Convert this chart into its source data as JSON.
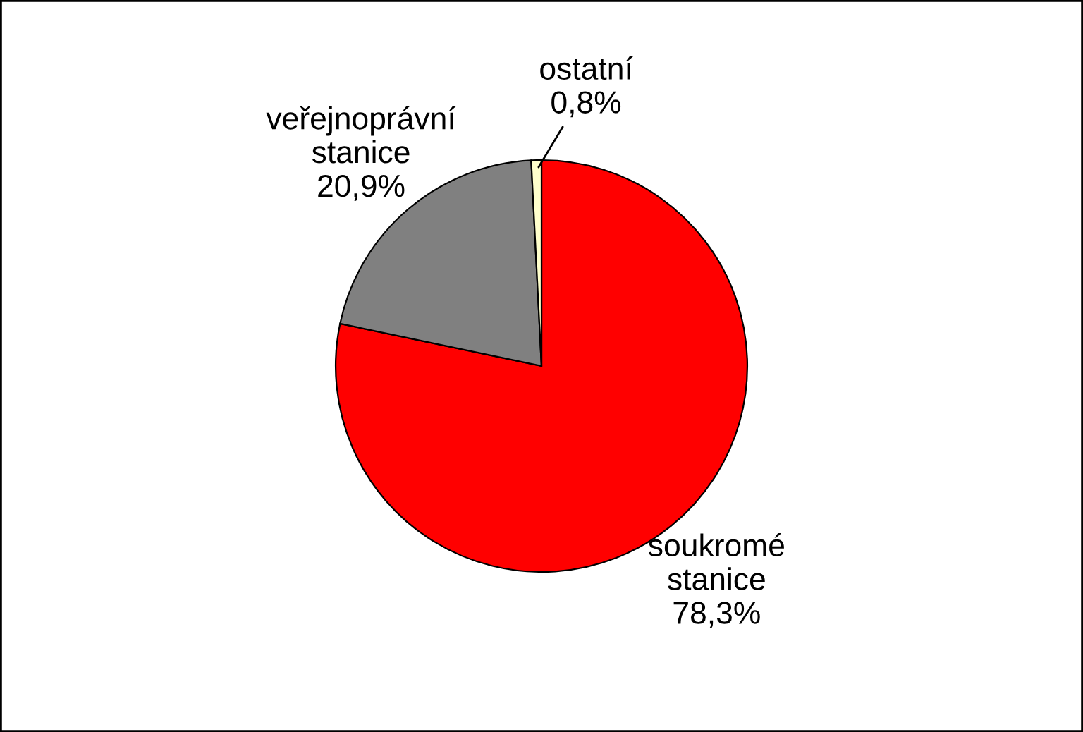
{
  "chart_data": {
    "type": "pie",
    "categories": [
      "soukromé stanice",
      "veřejnoprávní stanice",
      "ostatní"
    ],
    "values": [
      78.3,
      20.9,
      0.8
    ],
    "value_labels": [
      "78,3%",
      "20,9%",
      "0,8%"
    ],
    "colors": [
      "#ff0000",
      "#808080",
      "#ffffcc"
    ],
    "legend": false
  }
}
